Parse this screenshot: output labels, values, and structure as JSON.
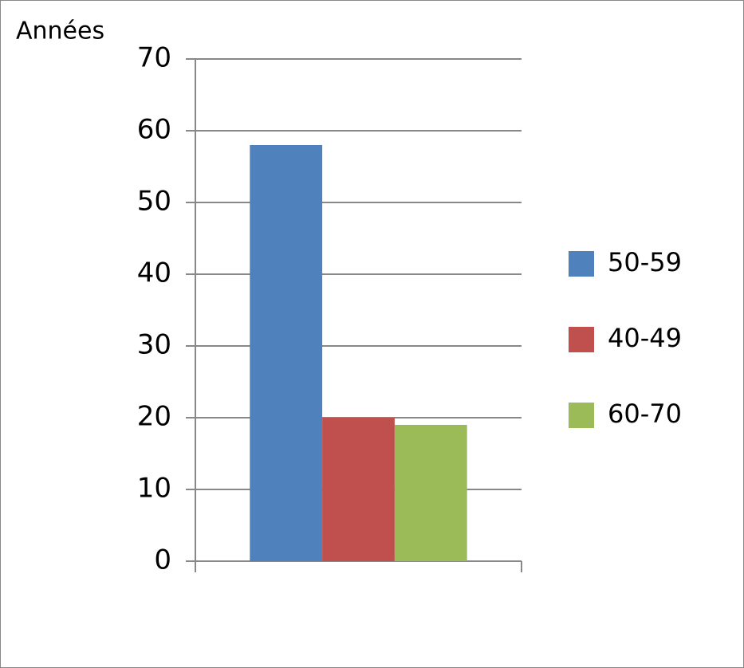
{
  "chart_data": {
    "type": "bar",
    "y_axis_label": "Années",
    "categories": [
      null
    ],
    "series": [
      {
        "name": "50-59",
        "color": "#4f81bd",
        "values": [
          58
        ]
      },
      {
        "name": "40-49",
        "color": "#c0504d",
        "values": [
          20
        ]
      },
      {
        "name": "60-70",
        "color": "#9bbb59",
        "values": [
          19
        ]
      }
    ],
    "ylim": [
      0,
      70
    ],
    "yticks": [
      0,
      10,
      20,
      30,
      40,
      50,
      60,
      70
    ],
    "grid": true,
    "legend": "right"
  }
}
